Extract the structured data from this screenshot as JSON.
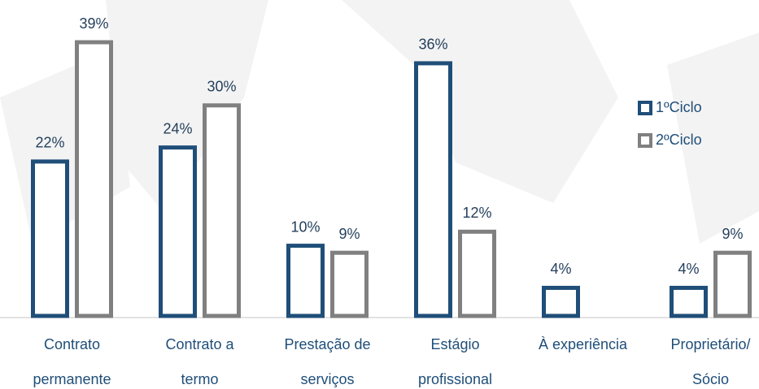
{
  "chart_data": {
    "type": "bar",
    "categories": [
      [
        "Contrato",
        "permanente"
      ],
      [
        "Contrato a",
        "termo"
      ],
      [
        "Prestação de",
        "serviços"
      ],
      [
        "Estágio",
        "profissional"
      ],
      [
        "À experiência"
      ],
      [
        "Proprietário/",
        "Sócio"
      ]
    ],
    "series": [
      {
        "name": "1ºCiclo",
        "color": "#1f4e79",
        "values": [
          22,
          24,
          10,
          36,
          4,
          4
        ],
        "value_labels": [
          "22%",
          "24%",
          "10%",
          "36%",
          "4%",
          "4%"
        ]
      },
      {
        "name": "2ºCiclo",
        "color": "#808080",
        "values": [
          39,
          30,
          9,
          12,
          null,
          9
        ],
        "value_labels": [
          "39%",
          "30%",
          "9%",
          "12%",
          null,
          "9%"
        ]
      }
    ],
    "legend": "right"
  }
}
